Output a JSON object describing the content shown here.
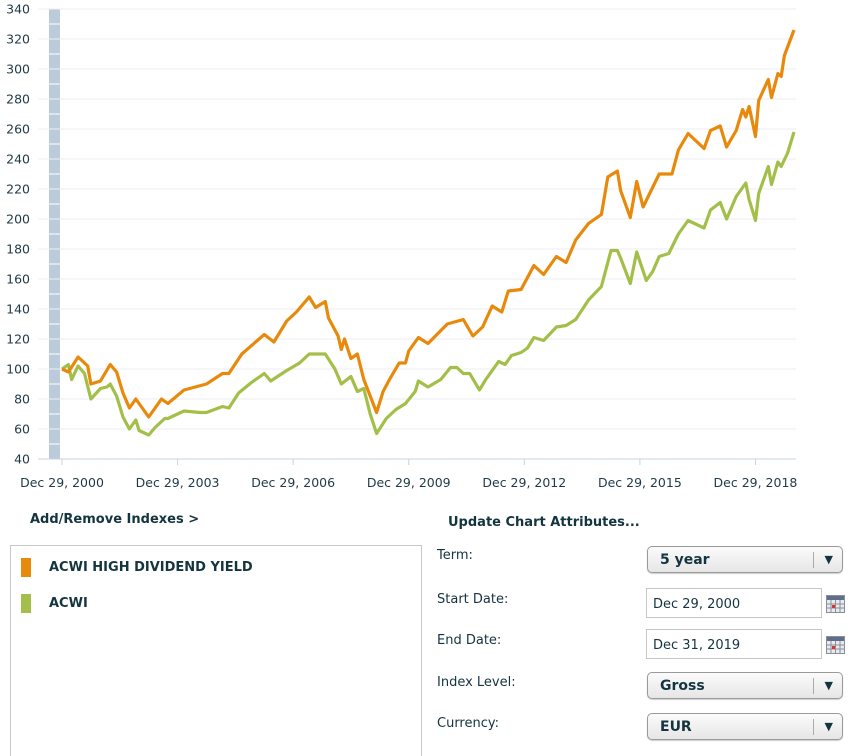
{
  "chart_data": {
    "type": "line",
    "ylim": [
      40,
      340
    ],
    "yticks": [
      "340",
      "320",
      "300",
      "280",
      "260",
      "240",
      "220",
      "200",
      "180",
      "160",
      "140",
      "120",
      "100",
      "80",
      "60",
      "40"
    ],
    "xlim": [
      "2000-12",
      "2019-12"
    ],
    "xticks": [
      {
        "date": "2000-12",
        "label": "Dec 29, 2000"
      },
      {
        "date": "2003-12",
        "label": "Dec 29, 2003"
      },
      {
        "date": "2006-12",
        "label": "Dec 29, 2006"
      },
      {
        "date": "2009-12",
        "label": "Dec 29, 2009"
      },
      {
        "date": "2012-12",
        "label": "Dec 29, 2012"
      },
      {
        "date": "2015-12",
        "label": "Dec 29, 2015"
      },
      {
        "date": "2018-12",
        "label": "Dec 29, 2018"
      }
    ],
    "grid": true,
    "series": [
      {
        "name": "ACWI HIGH DIVIDEND YIELD",
        "color": "#e8890c",
        "x": [
          "2000-12",
          "2001-02",
          "2001-05",
          "2001-08",
          "2001-09",
          "2001-12",
          "2002-03",
          "2002-05",
          "2002-07",
          "2002-09",
          "2002-11",
          "2003-03",
          "2003-07",
          "2003-09",
          "2004-02",
          "2004-09",
          "2005-02",
          "2005-04",
          "2005-08",
          "2006-03",
          "2006-06",
          "2006-10",
          "2007-01",
          "2007-05",
          "2007-07",
          "2007-10",
          "2007-11",
          "2008-02",
          "2008-03",
          "2008-04",
          "2008-06",
          "2008-08",
          "2008-10",
          "2009-02",
          "2009-04",
          "2009-06",
          "2009-09",
          "2009-11",
          "2009-12",
          "2010-03",
          "2010-06",
          "2010-12",
          "2011-05",
          "2011-08",
          "2011-11",
          "2012-02",
          "2012-05",
          "2012-07",
          "2012-11",
          "2013-03",
          "2013-06",
          "2013-10",
          "2014-01",
          "2014-04",
          "2014-08",
          "2014-12",
          "2015-02",
          "2015-05",
          "2015-06",
          "2015-09",
          "2015-11",
          "2016-01",
          "2016-06",
          "2016-10",
          "2016-12",
          "2017-03",
          "2017-08",
          "2017-10",
          "2018-01",
          "2018-03",
          "2018-06",
          "2018-08",
          "2018-09",
          "2018-10",
          "2018-12",
          "2019-01",
          "2019-04",
          "2019-05",
          "2019-07",
          "2019-08",
          "2019-09",
          "2019-12"
        ],
        "values": [
          100,
          98,
          108,
          102,
          90,
          92,
          103,
          98,
          84,
          74,
          80,
          68,
          80,
          77,
          86,
          90,
          97,
          97,
          110,
          123,
          118,
          132,
          138,
          148,
          141,
          145,
          134,
          122,
          113,
          120,
          107,
          110,
          93,
          71,
          85,
          93,
          104,
          104,
          112,
          121,
          117,
          130,
          133,
          122,
          128,
          142,
          138,
          152,
          153,
          169,
          163,
          175,
          171,
          186,
          197,
          203,
          228,
          232,
          219,
          201,
          225,
          208,
          230,
          230,
          246,
          257,
          247,
          259,
          262,
          248,
          259,
          273,
          268,
          275,
          255,
          279,
          293,
          281,
          297,
          295,
          309,
          326
        ]
      },
      {
        "name": "ACWI",
        "color": "#a3bf4a",
        "x": [
          "2000-12",
          "2001-02",
          "2001-03",
          "2001-05",
          "2001-07",
          "2001-09",
          "2001-12",
          "2002-02",
          "2002-03",
          "2002-05",
          "2002-07",
          "2002-09",
          "2002-11",
          "2002-12",
          "2003-03",
          "2003-05",
          "2003-08",
          "2003-09",
          "2004-02",
          "2004-07",
          "2004-09",
          "2005-02",
          "2005-04",
          "2005-07",
          "2005-11",
          "2006-03",
          "2006-05",
          "2006-10",
          "2007-02",
          "2007-05",
          "2007-10",
          "2008-01",
          "2008-03",
          "2008-06",
          "2008-08",
          "2008-10",
          "2008-12",
          "2009-02",
          "2009-05",
          "2009-08",
          "2009-11",
          "2010-02",
          "2010-03",
          "2010-06",
          "2010-10",
          "2011-01",
          "2011-03",
          "2011-05",
          "2011-07",
          "2011-10",
          "2011-12",
          "2012-04",
          "2012-06",
          "2012-08",
          "2012-11",
          "2013-01",
          "2013-03",
          "2013-06",
          "2013-10",
          "2014-01",
          "2014-04",
          "2014-08",
          "2014-12",
          "2015-03",
          "2015-05",
          "2015-06",
          "2015-09",
          "2015-11",
          "2016-02",
          "2016-04",
          "2016-06",
          "2016-09",
          "2016-12",
          "2017-03",
          "2017-08",
          "2017-10",
          "2018-01",
          "2018-03",
          "2018-06",
          "2018-09",
          "2018-10",
          "2018-12",
          "2019-01",
          "2019-04",
          "2019-05",
          "2019-07",
          "2019-08",
          "2019-10",
          "2019-12"
        ],
        "values": [
          100,
          103,
          93,
          102,
          97,
          80,
          87,
          88,
          90,
          82,
          68,
          60,
          66,
          59,
          56,
          61,
          67,
          67,
          72,
          71,
          71,
          75,
          74,
          84,
          91,
          97,
          92,
          99,
          104,
          110,
          110,
          100,
          90,
          95,
          85,
          87,
          70,
          57,
          67,
          73,
          77,
          85,
          92,
          88,
          93,
          101,
          101,
          97,
          97,
          86,
          93,
          105,
          103,
          109,
          111,
          114,
          121,
          119,
          128,
          129,
          133,
          146,
          155,
          179,
          179,
          174,
          157,
          178,
          159,
          165,
          175,
          177,
          190,
          199,
          194,
          206,
          211,
          200,
          215,
          224,
          213,
          199,
          217,
          235,
          223,
          238,
          235,
          244,
          258
        ]
      }
    ]
  },
  "indexes": {
    "header": "Add/Remove Indexes >",
    "items": [
      {
        "label": "ACWI HIGH DIVIDEND YIELD",
        "color": "#e8890c"
      },
      {
        "label": "ACWI",
        "color": "#a3bf4a"
      }
    ]
  },
  "attributes": {
    "header": "Update Chart Attributes...",
    "term": {
      "label": "Term:",
      "value": "5 year"
    },
    "start_date": {
      "label": "Start Date:",
      "value": "Dec 29, 2000"
    },
    "end_date": {
      "label": "End Date:",
      "value": "Dec 31, 2019"
    },
    "index_level": {
      "label": "Index Level:",
      "value": "Gross"
    },
    "currency": {
      "label": "Currency:",
      "value": "EUR"
    }
  }
}
